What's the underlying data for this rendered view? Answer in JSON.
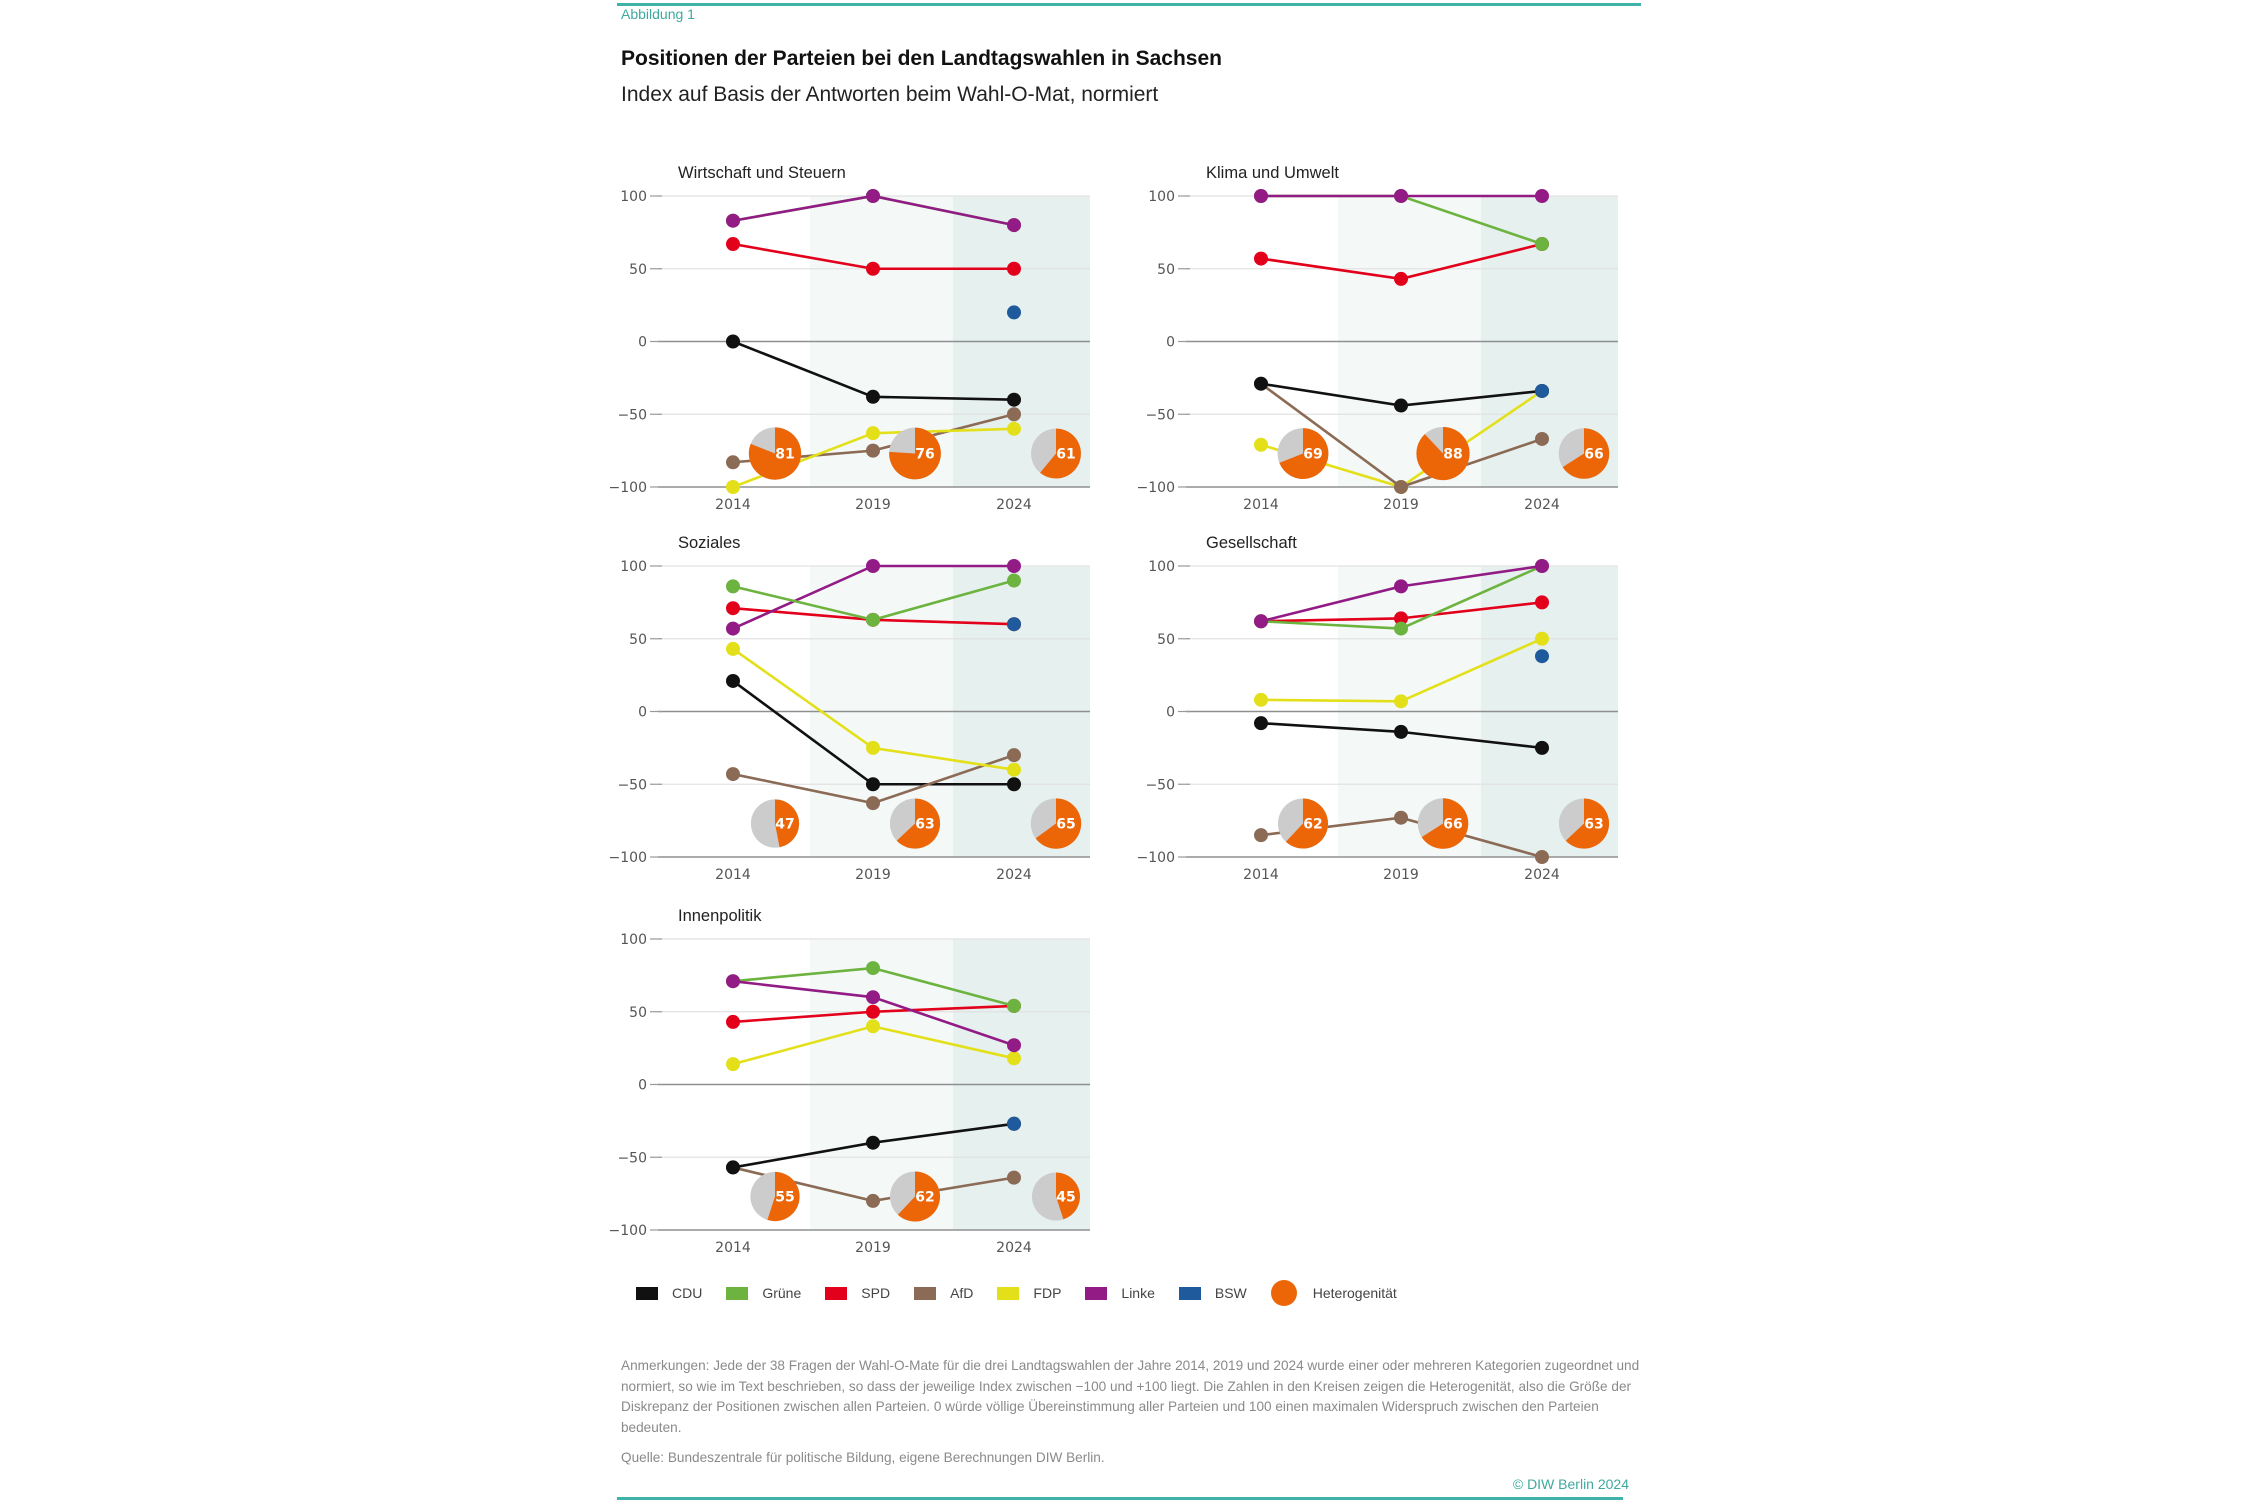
{
  "figure_label": "Abbildung 1",
  "title": "Positionen der Parteien bei den Landtagswahlen in Sachsen",
  "subtitle": "Index auf Basis der Antworten beim Wahl-O-Mat, normiert",
  "parties": [
    {
      "key": "CDU",
      "label": "CDU",
      "color": "#111111"
    },
    {
      "key": "Gruene",
      "label": "Grüne",
      "color": "#6db33f"
    },
    {
      "key": "SPD",
      "label": "SPD",
      "color": "#e3001b"
    },
    {
      "key": "AfD",
      "label": "AfD",
      "color": "#8b6b55"
    },
    {
      "key": "FDP",
      "label": "FDP",
      "color": "#e3e01a"
    },
    {
      "key": "Linke",
      "label": "Linke",
      "color": "#931b85"
    },
    {
      "key": "BSW",
      "label": "BSW",
      "color": "#1e5a9c"
    }
  ],
  "heterogeneity": {
    "label": "Heterogenität",
    "color": "#ec6608",
    "rest_color": "#cccccc"
  },
  "chart_data": [
    {
      "type": "line",
      "title": "Wirtschaft und Steuern",
      "x": [
        "2014",
        "2019",
        "2024"
      ],
      "ylim": [
        -100,
        100
      ],
      "yticks": [
        "100",
        "50",
        "0",
        "−50",
        "−100"
      ],
      "series": [
        {
          "name": "CDU",
          "values": [
            0,
            -38,
            -40
          ]
        },
        {
          "name": "AfD",
          "values": [
            -83,
            -75,
            -50
          ]
        },
        {
          "name": "FDP",
          "values": [
            -100,
            -63,
            -60
          ]
        },
        {
          "name": "SPD",
          "values": [
            67,
            50,
            50
          ]
        },
        {
          "name": "Gruene",
          "values": [
            83,
            100,
            80
          ]
        },
        {
          "name": "Linke",
          "values": [
            83,
            100,
            80
          ]
        },
        {
          "name": "BSW",
          "values": [
            null,
            null,
            20
          ]
        }
      ],
      "heterogeneity": [
        81,
        76,
        61
      ]
    },
    {
      "type": "line",
      "title": "Klima und Umwelt",
      "x": [
        "2014",
        "2019",
        "2024"
      ],
      "ylim": [
        -100,
        100
      ],
      "yticks": [
        "100",
        "50",
        "0",
        "−50",
        "−100"
      ],
      "series": [
        {
          "name": "FDP",
          "values": [
            -71,
            -100,
            -34
          ]
        },
        {
          "name": "AfD",
          "values": [
            -29,
            -100,
            -67
          ]
        },
        {
          "name": "CDU",
          "values": [
            -29,
            -44,
            -34
          ]
        },
        {
          "name": "SPD",
          "values": [
            57,
            43,
            67
          ]
        },
        {
          "name": "Gruene",
          "values": [
            100,
            100,
            67
          ]
        },
        {
          "name": "Linke",
          "values": [
            100,
            100,
            100
          ]
        },
        {
          "name": "BSW",
          "values": [
            null,
            null,
            -34
          ]
        }
      ],
      "heterogeneity": [
        69,
        88,
        66
      ]
    },
    {
      "type": "line",
      "title": "Soziales",
      "x": [
        "2014",
        "2019",
        "2024"
      ],
      "ylim": [
        -100,
        100
      ],
      "yticks": [
        "100",
        "50",
        "0",
        "−50",
        "−100"
      ],
      "series": [
        {
          "name": "CDU",
          "values": [
            21,
            -50,
            -50
          ]
        },
        {
          "name": "AfD",
          "values": [
            -43,
            -63,
            -30
          ]
        },
        {
          "name": "FDP",
          "values": [
            43,
            -25,
            -40
          ]
        },
        {
          "name": "SPD",
          "values": [
            71,
            63,
            60
          ]
        },
        {
          "name": "Linke",
          "values": [
            57,
            100,
            100
          ]
        },
        {
          "name": "Gruene",
          "values": [
            86,
            63,
            90
          ]
        },
        {
          "name": "BSW",
          "values": [
            null,
            null,
            60
          ]
        }
      ],
      "heterogeneity": [
        47,
        63,
        65
      ]
    },
    {
      "type": "line",
      "title": "Gesellschaft",
      "x": [
        "2014",
        "2019",
        "2024"
      ],
      "ylim": [
        -100,
        100
      ],
      "yticks": [
        "100",
        "50",
        "0",
        "−50",
        "−100"
      ],
      "series": [
        {
          "name": "AfD",
          "values": [
            -85,
            -73,
            -100
          ]
        },
        {
          "name": "CDU",
          "values": [
            -8,
            -14,
            -25
          ]
        },
        {
          "name": "FDP",
          "values": [
            8,
            7,
            50
          ]
        },
        {
          "name": "SPD",
          "values": [
            62,
            64,
            75
          ]
        },
        {
          "name": "Gruene",
          "values": [
            62,
            57,
            100
          ]
        },
        {
          "name": "Linke",
          "values": [
            62,
            86,
            100
          ]
        },
        {
          "name": "BSW",
          "values": [
            null,
            null,
            38
          ]
        }
      ],
      "heterogeneity": [
        62,
        66,
        63
      ]
    },
    {
      "type": "line",
      "title": "Innenpolitik",
      "x": [
        "2014",
        "2019",
        "2024"
      ],
      "ylim": [
        -100,
        100
      ],
      "yticks": [
        "100",
        "50",
        "0",
        "−50",
        "−100"
      ],
      "series": [
        {
          "name": "AfD",
          "values": [
            -57,
            -80,
            -64
          ]
        },
        {
          "name": "CDU",
          "values": [
            -57,
            -40,
            -27
          ]
        },
        {
          "name": "FDP",
          "values": [
            14,
            40,
            18
          ]
        },
        {
          "name": "SPD",
          "values": [
            43,
            50,
            54
          ]
        },
        {
          "name": "Gruene",
          "values": [
            71,
            80,
            54
          ]
        },
        {
          "name": "Linke",
          "values": [
            71,
            60,
            27
          ]
        },
        {
          "name": "BSW",
          "values": [
            null,
            null,
            -27
          ]
        }
      ],
      "heterogeneity": [
        55,
        62,
        45
      ]
    }
  ],
  "notes": "Anmerkungen: Jede der 38 Fragen der Wahl-O-Mate für die drei Landtagswahlen der Jahre 2014, 2019 und 2024 wurde einer oder mehreren Kategorien zugeordnet und normiert, so wie im Text beschrieben, so dass der jeweilige Index zwischen −100 und +100 liegt. Die Zahlen in den Kreisen zeigen die Heterogenität, also die Größe der Diskrepanz der Positionen zwischen allen Parteien. 0 würde völlige Übereinstimmung aller Parteien und 100 einen maximalen Widerspruch zwischen den Parteien bedeuten.",
  "source": "Quelle: Bundeszentrale für politische Bildung, eigene Berechnungen DIW Berlin.",
  "copyright": "© DIW Berlin 2024"
}
